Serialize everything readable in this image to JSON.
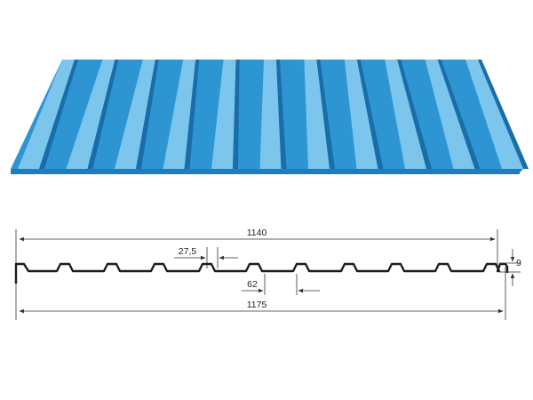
{
  "product": {
    "colors": {
      "face": "#2e95d3",
      "rib_highlight": "#7cc6ee",
      "rib_shadow": "#1a6da8",
      "edge": "#1f7dbf",
      "outline": "#1c1c1c",
      "dimension": "#333333"
    }
  },
  "drawing": {
    "dimensions": {
      "overall_useful_width": "1140",
      "overall_total_width": "1175",
      "flange_width": "27,5",
      "rib_pitch": "62",
      "profile_height": "9"
    }
  }
}
